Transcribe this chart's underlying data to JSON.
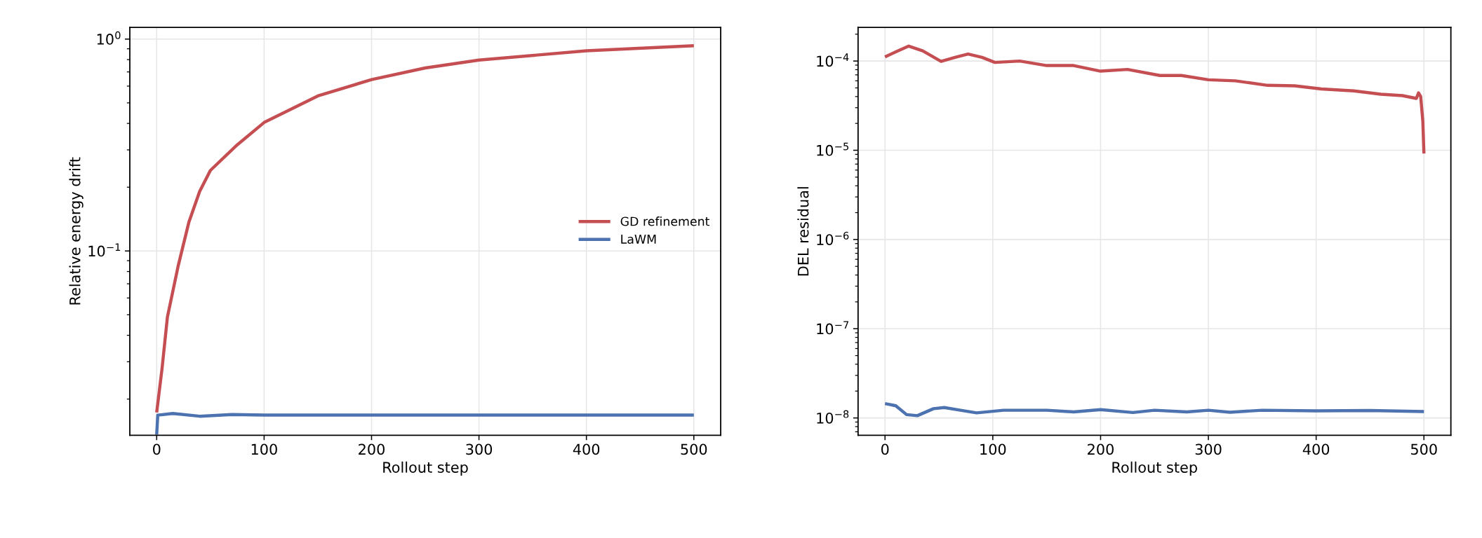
{
  "chart_data": [
    {
      "type": "line",
      "xlabel": "Rollout step",
      "ylabel": "Relative energy drift",
      "log": "y",
      "grid": true,
      "legend": "center right",
      "xlim": [
        -25,
        525
      ],
      "xticks": [
        0,
        100,
        200,
        300,
        400,
        500
      ],
      "ylim": [
        0.0135,
        1.135
      ],
      "yticks": [
        {
          "value": 0.1,
          "label": "10$^{−1}$"
        },
        {
          "value": 1,
          "label": "10$^{0}$"
        }
      ],
      "series": [
        {
          "name": "GD refinement",
          "color": "#c44e52",
          "x": [
            0,
            5,
            10,
            20,
            30,
            40,
            50,
            75,
            100,
            150,
            200,
            250,
            300,
            400,
            500
          ],
          "values": [
            0.0173,
            0.0279,
            0.0488,
            0.085,
            0.137,
            0.191,
            0.24,
            0.317,
            0.404,
            0.539,
            0.644,
            0.731,
            0.796,
            0.881,
            0.931
          ]
        },
        {
          "name": "LaWM",
          "color": "#4c72b0",
          "x": [
            0,
            1,
            15,
            40,
            70,
            100,
            200,
            300,
            400,
            500
          ],
          "values": [
            0.0136,
            0.0168,
            0.0171,
            0.0166,
            0.0169,
            0.0168,
            0.0168,
            0.0168,
            0.0168,
            0.0168
          ]
        }
      ]
    },
    {
      "type": "line",
      "xlabel": "Rollout step",
      "ylabel": "DEL residual",
      "log": "y",
      "grid": true,
      "xlim": [
        -25,
        525
      ],
      "xticks": [
        0,
        100,
        200,
        300,
        400,
        500
      ],
      "ylim": [
        6.4e-09,
        0.000238
      ],
      "yticks": [
        {
          "value": 1e-08,
          "label": "10$^{−8}$"
        },
        {
          "value": 1e-07,
          "label": "10$^{−7}$"
        },
        {
          "value": 1e-06,
          "label": "10$^{−6}$"
        },
        {
          "value": 1e-05,
          "label": "10$^{−5}$"
        },
        {
          "value": 0.0001,
          "label": "10$^{−4}$"
        }
      ],
      "series": [
        {
          "color": "#c44e52",
          "x": [
            0,
            10,
            22,
            35,
            52,
            65,
            77,
            90,
            102,
            125,
            150,
            175,
            200,
            225,
            255,
            275,
            300,
            325,
            355,
            380,
            405,
            435,
            460,
            480,
            493,
            495,
            497,
            499,
            500
          ],
          "values": [
            0.000111,
            0.000127,
            0.000147,
            0.00013,
            9.9e-05,
            0.00011,
            0.00012,
            0.00011,
            9.65e-05,
            0.0001,
            8.9e-05,
            8.9e-05,
            7.7e-05,
            8.05e-05,
            6.89e-05,
            6.89e-05,
            6.17e-05,
            6e-05,
            5.34e-05,
            5.28e-05,
            4.86e-05,
            4.63e-05,
            4.25e-05,
            4.1e-05,
            3.81e-05,
            4.4e-05,
            4e-05,
            2.1e-05,
            9.2e-06
          ]
        },
        {
          "color": "#4c72b0",
          "x": [
            0,
            10,
            20,
            30,
            45,
            55,
            70,
            85,
            110,
            150,
            175,
            200,
            230,
            250,
            280,
            300,
            320,
            350,
            400,
            450,
            500
          ],
          "values": [
            1.45e-08,
            1.37e-08,
            1.09e-08,
            1.06e-08,
            1.27e-08,
            1.31e-08,
            1.22e-08,
            1.14e-08,
            1.22e-08,
            1.22e-08,
            1.17e-08,
            1.24e-08,
            1.15e-08,
            1.22e-08,
            1.17e-08,
            1.22e-08,
            1.16e-08,
            1.22e-08,
            1.2e-08,
            1.21e-08,
            1.18e-08
          ]
        }
      ]
    }
  ]
}
